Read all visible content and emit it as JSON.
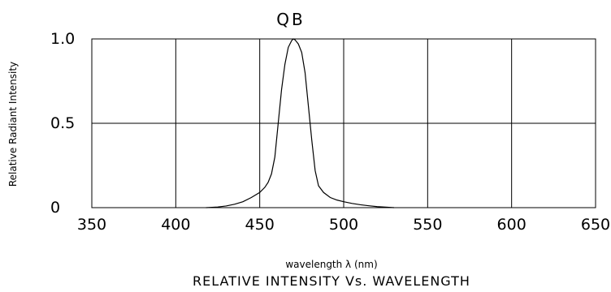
{
  "chart_data": {
    "type": "line",
    "title": "QB",
    "xlabel": "wavelength λ (nm)",
    "ylabel": "Relative Radiant Intensity",
    "caption": "RELATIVE INTENSITY Vs. WAVELENGTH",
    "xlim": [
      350,
      650
    ],
    "ylim": [
      0,
      1.0
    ],
    "x_ticks": [
      "350",
      "400",
      "450",
      "500",
      "550",
      "600",
      "650"
    ],
    "y_ticks": [
      {
        "value": 0,
        "label": "0"
      },
      {
        "value": 0.5,
        "label": "0.5"
      },
      {
        "value": 1.0,
        "label": "1.0"
      }
    ],
    "grid": true,
    "series": [
      {
        "values": [
          [
            418,
            0.0
          ],
          [
            425,
            0.004
          ],
          [
            430,
            0.01
          ],
          [
            435,
            0.02
          ],
          [
            440,
            0.035
          ],
          [
            445,
            0.06
          ],
          [
            450,
            0.09
          ],
          [
            453,
            0.12
          ],
          [
            455,
            0.15
          ],
          [
            457,
            0.2
          ],
          [
            459,
            0.3
          ],
          [
            461,
            0.5
          ],
          [
            463,
            0.7
          ],
          [
            465,
            0.85
          ],
          [
            467,
            0.95
          ],
          [
            469,
            0.99
          ],
          [
            470,
            1.0
          ],
          [
            471,
            0.995
          ],
          [
            473,
            0.97
          ],
          [
            475,
            0.92
          ],
          [
            477,
            0.8
          ],
          [
            479,
            0.6
          ],
          [
            481,
            0.4
          ],
          [
            483,
            0.22
          ],
          [
            485,
            0.13
          ],
          [
            488,
            0.09
          ],
          [
            492,
            0.06
          ],
          [
            496,
            0.045
          ],
          [
            500,
            0.035
          ],
          [
            505,
            0.025
          ],
          [
            510,
            0.017
          ],
          [
            515,
            0.011
          ],
          [
            520,
            0.006
          ],
          [
            525,
            0.003
          ],
          [
            530,
            0.0
          ]
        ]
      }
    ]
  }
}
